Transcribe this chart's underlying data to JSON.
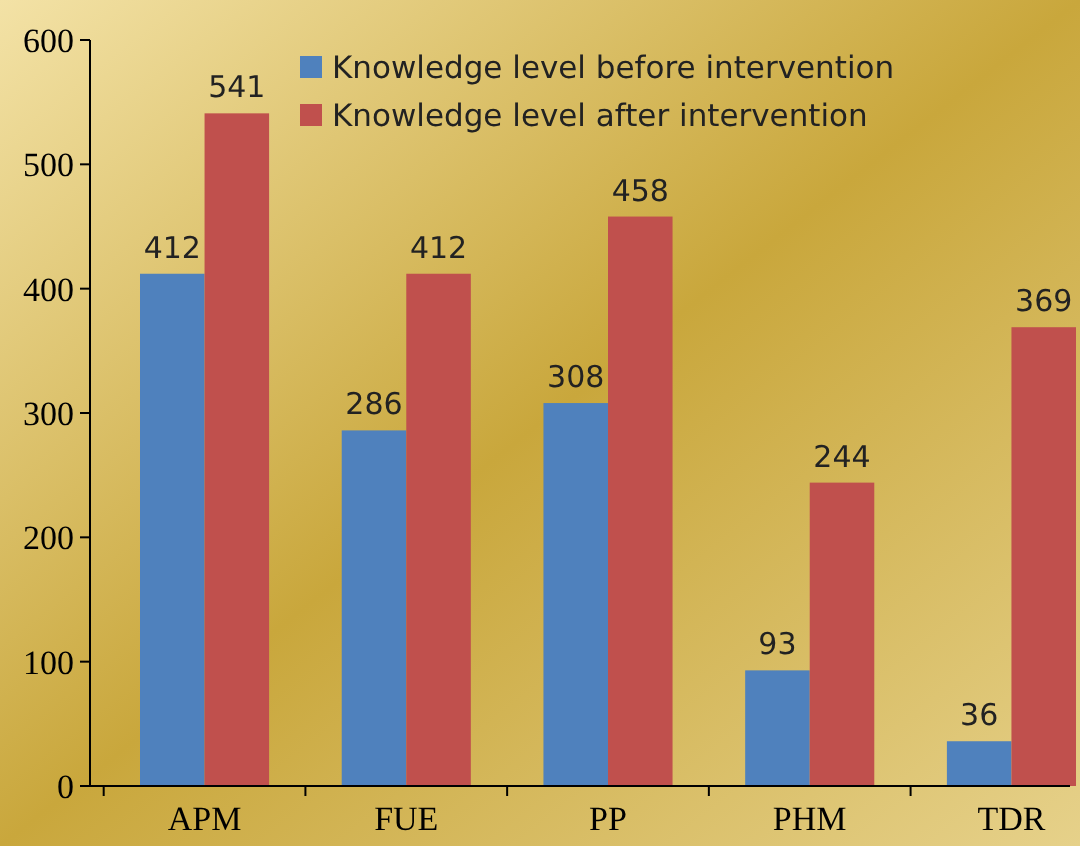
{
  "chart_data": {
    "type": "bar",
    "categories": [
      "APM",
      "FUE",
      "PP",
      "PHM",
      "TDR"
    ],
    "series": [
      {
        "name": "Knowledge level before intervention",
        "color": "#4f81bd",
        "values": [
          412,
          286,
          308,
          93,
          36
        ]
      },
      {
        "name": "Knowledge level after intervention",
        "color": "#c0504d",
        "values": [
          541,
          412,
          458,
          244,
          369
        ]
      }
    ],
    "ylim": [
      0,
      600
    ],
    "yticks": [
      0,
      100,
      200,
      300,
      400,
      500,
      600
    ],
    "data_labels": true,
    "legend": "top",
    "grid": false
  }
}
